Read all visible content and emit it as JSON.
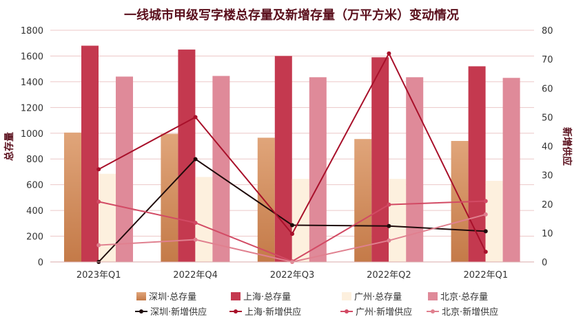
{
  "chart_data": {
    "type": "bar",
    "title": "一线城市甲级写字楼总存量及新增存量（万平方米）变动情况",
    "categories": [
      "2023年Q1",
      "2022年Q4",
      "2022年Q3",
      "2022年Q2",
      "2022年Q1"
    ],
    "ylabel_left": "总存量",
    "ylabel_right": "新增供应",
    "ylim_left": [
      0,
      1800
    ],
    "ylim_right": [
      0,
      80
    ],
    "yticks_left": [
      0,
      200,
      400,
      600,
      800,
      1000,
      1200,
      1400,
      1600,
      1800
    ],
    "yticks_right": [
      0,
      10,
      20,
      30,
      40,
      50,
      60,
      70,
      80
    ],
    "grid": true,
    "legend_position": "bottom",
    "bar_series": [
      {
        "name": "深圳·总存量",
        "values": [
          1005,
          995,
          965,
          955,
          940
        ],
        "color": "#d4935f"
      },
      {
        "name": "上海·总存量",
        "values": [
          1680,
          1650,
          1600,
          1590,
          1520
        ],
        "color": "#c4394f"
      },
      {
        "name": "广州·总存量",
        "values": [
          685,
          660,
          645,
          645,
          630
        ],
        "color": "#fdf0de"
      },
      {
        "name": "北京·总存量",
        "values": [
          1440,
          1445,
          1435,
          1435,
          1430
        ],
        "color": "#df8a99"
      }
    ],
    "line_series": [
      {
        "name": "深圳·新增供应",
        "values": [
          0,
          35.5,
          12.7,
          12.4,
          10.6
        ],
        "color": "#1e0a0a"
      },
      {
        "name": "上海·新增供应",
        "values": [
          32,
          50,
          9.7,
          72,
          3.5
        ],
        "color": "#a8102a"
      },
      {
        "name": "广州·新增供应",
        "values": [
          20.8,
          13.5,
          0.2,
          19.8,
          21
        ],
        "color": "#d24a64"
      },
      {
        "name": "北京·新增供应",
        "values": [
          5.8,
          7.7,
          0,
          7.4,
          16.4
        ],
        "color": "#e0808f"
      }
    ]
  }
}
